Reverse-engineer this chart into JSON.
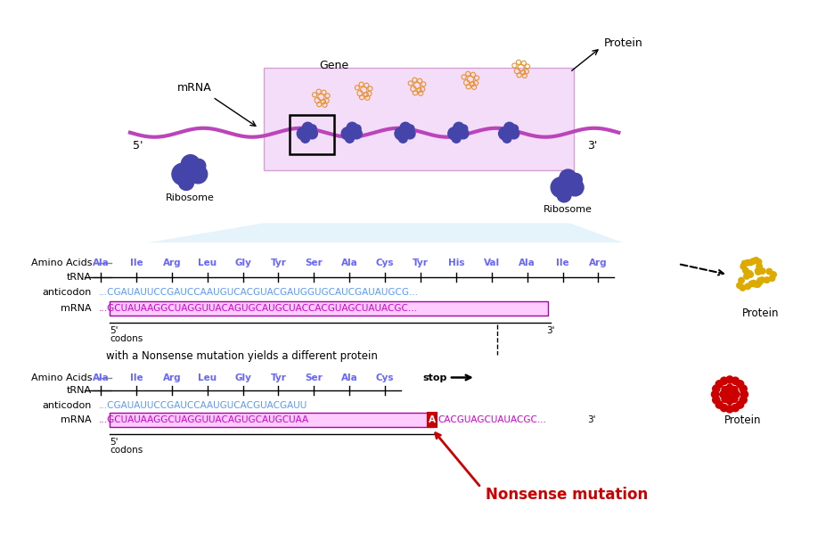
{
  "bg_color": "#ffffff",
  "section1": {
    "amino_acids": [
      "Ala",
      "Ile",
      "Arg",
      "Leu",
      "Gly",
      "Tyr",
      "Ser",
      "Ala",
      "Cys",
      "Tyr",
      "His",
      "Val",
      "Ala",
      "Ile",
      "Arg"
    ],
    "amino_color": "#6666ff",
    "anticodon_seq": "...CGAUAUUCCGAUCCAAUGUCACGUACGAUGGUGCAUCGAUAUGCG...",
    "anticodon_color": "#5599ff",
    "mrna_seq": "...GCUAUAAGGCUAGGUUACAGUGCAUGCUACCACGUAGCUAUACGC...",
    "mrna_seq_color": "#cc00cc",
    "protein_color": "#ddaa00"
  },
  "section2": {
    "amino_acids": [
      "Ala",
      "Ile",
      "Arg",
      "Leu",
      "Gly",
      "Tyr",
      "Ser",
      "Ala",
      "Cys"
    ],
    "amino_color": "#6666ff",
    "anticodon_seq": "...CGAUAUUCCGAUCCAAUGUCACGUACGAUU",
    "anticodon_color": "#5599ff",
    "mrna_seq_boxed": "...GCUAUAAGGCUAGGUUACAGUGCAUGCUAA",
    "mrna_seq_after": "CACGUAGCUAUACGC...",
    "mrna_seq_color": "#cc00cc",
    "mutated_base": "A",
    "mutation_box_color": "#cc0000",
    "nonsense_label": "Nonsense mutation",
    "nonsense_color": "#cc0000",
    "protein_color": "#cc0000"
  },
  "colors": {
    "blue_seq": "#5599ff",
    "purple_seq": "#cc00cc",
    "mrna_box_bg": "#ffccff",
    "mrna_box_edge": "#aa00aa",
    "gene_bg": "#e8b4f0",
    "cone_color": "#d5eef8",
    "mrna_strand": "#bb44bb"
  }
}
